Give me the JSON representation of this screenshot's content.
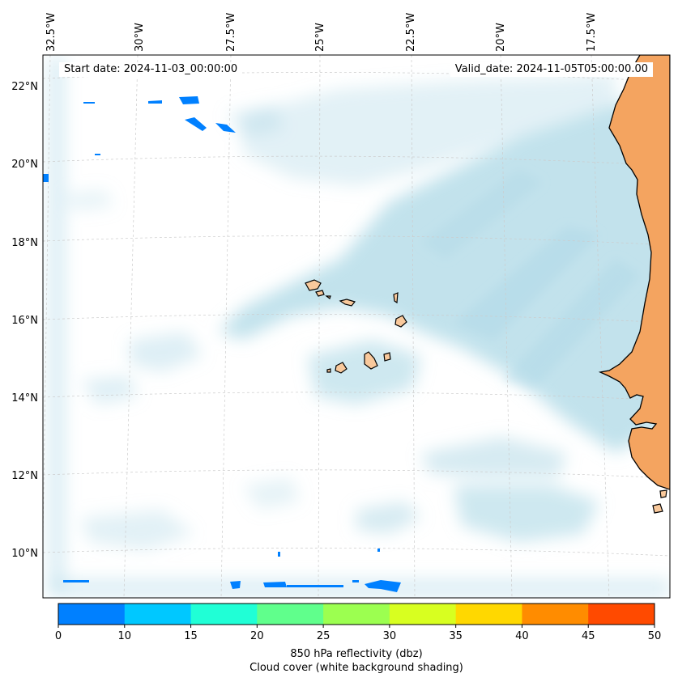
{
  "map": {
    "start_date": "Start date: 2024-11-03_00:00:00",
    "valid_date": "Valid_date: 2024-11-05T05:00:00.00",
    "lon_labels": [
      "32.5°W",
      "30°W",
      "27.5°W",
      "25°W",
      "22.5°W",
      "20°W",
      "17.5°W"
    ],
    "lat_labels": [
      "22°N",
      "20°N",
      "18°N",
      "16°N",
      "14°N",
      "12°N",
      "10°N"
    ],
    "colors": {
      "land": "#f4a460",
      "island": "#f9c99c",
      "cloud": "#add8e6",
      "coastline": "#000000"
    }
  },
  "colorbar": {
    "ticks": [
      "0",
      "10",
      "15",
      "20",
      "25",
      "30",
      "35",
      "40",
      "45",
      "50"
    ],
    "colors": [
      "#0080ff",
      "#00c8ff",
      "#20ffd6",
      "#60ff8c",
      "#9cff50",
      "#d8ff20",
      "#ffd800",
      "#ff8c00",
      "#ff4a00"
    ],
    "label_line1": "850 hPa reflectivity (dbz)",
    "label_line2": "Cloud cover (white background shading)"
  }
}
